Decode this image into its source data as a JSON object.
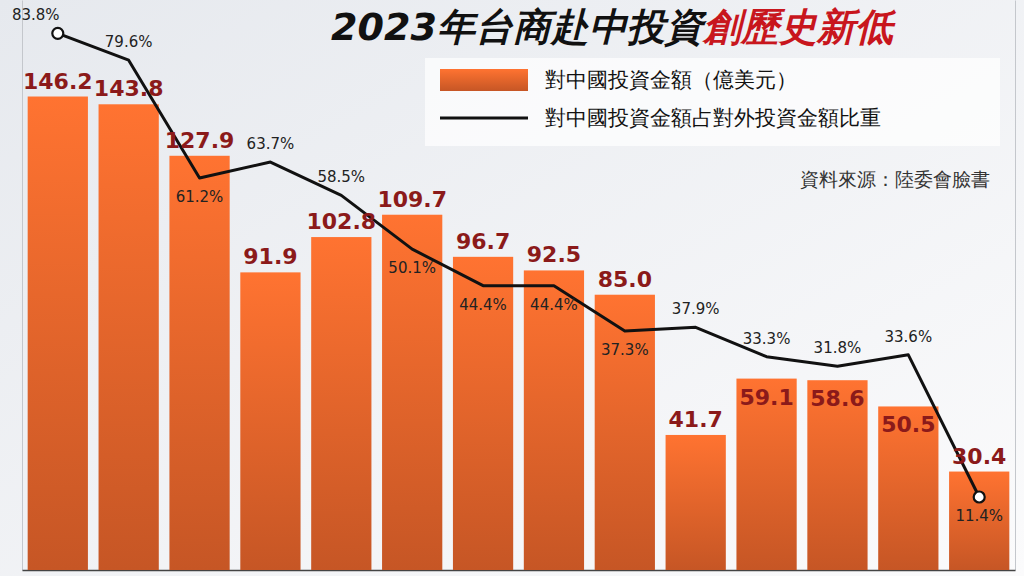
{
  "chart_data": {
    "type": "bar",
    "title": [
      "2023年台商赴中投資",
      "創歷史新低"
    ],
    "annotations": [
      "資料來源：陸委會臉書"
    ],
    "categories": [
      null,
      null,
      null,
      null,
      null,
      null,
      null,
      null,
      null,
      null,
      null,
      null,
      null,
      null
    ],
    "series": [
      {
        "name": "對中國投資金額（億美元）",
        "type": "bar",
        "color": "#e0622a",
        "values": [
          146.2,
          143.8,
          127.9,
          91.9,
          102.8,
          109.7,
          96.7,
          92.5,
          85.0,
          41.7,
          59.1,
          58.6,
          50.5,
          30.4
        ],
        "value_labels": [
          "146.2",
          "143.8",
          "127.9",
          "91.9",
          "102.8",
          "109.7",
          "96.7",
          "92.5",
          "85.0",
          "41.7",
          "59.1",
          "58.6",
          "50.5",
          "30.4"
        ]
      },
      {
        "name": "對中國投資金額占對外投資金額比重",
        "type": "line",
        "color": "#111111",
        "axis": "y2",
        "values": [
          83.8,
          79.6,
          61.2,
          63.7,
          58.5,
          50.1,
          44.4,
          44.4,
          37.3,
          37.9,
          33.3,
          31.8,
          33.6,
          11.4
        ],
        "value_labels": [
          "83.8%",
          "79.6%",
          "61.2%",
          "63.7%",
          "58.5%",
          "50.1%",
          "44.4%",
          "44.4%",
          "37.3%",
          "37.9%",
          "33.3%",
          "31.8%",
          "33.6%",
          "11.4%"
        ]
      }
    ],
    "ylim": [
      0,
      176
    ],
    "y2lim": [
      0,
      89
    ],
    "tick_labels": false,
    "data_labels": true,
    "legend": "top-right",
    "grid": false
  }
}
